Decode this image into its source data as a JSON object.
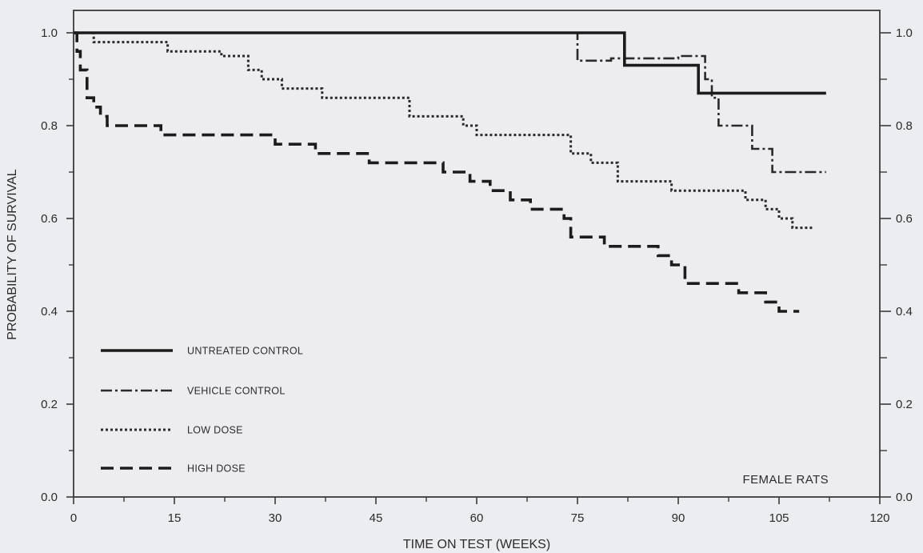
{
  "chart_data": {
    "type": "line",
    "title": "",
    "xlabel": "TIME ON TEST (WEEKS)",
    "ylabel": "PROBABILITY OF SURVIVAL",
    "xlim": [
      0,
      120
    ],
    "ylim": [
      0.0,
      1.0
    ],
    "x_ticks": [
      "0",
      "15",
      "30",
      "45",
      "60",
      "75",
      "90",
      "105",
      "120"
    ],
    "y_ticks_left": [
      "0.0",
      "0.2",
      "0.4",
      "0.6",
      "0.8",
      "1.0"
    ],
    "y_ticks_right": [
      "0.0",
      "0.2",
      "0.4",
      "0.6",
      "0.8",
      "1.0"
    ],
    "grid": false,
    "legend_position": "lower-left",
    "annotation": "FEMALE RATS",
    "series": [
      {
        "name": "UNTREATED CONTROL",
        "style": "solid",
        "color": "#1c1c1c",
        "steps": [
          [
            0,
            1.0
          ],
          [
            82,
            0.93
          ],
          [
            93,
            0.87
          ],
          [
            112,
            0.87
          ]
        ]
      },
      {
        "name": "VEHICLE CONTROL",
        "style": "dashdot",
        "color": "#2a2a2a",
        "steps": [
          [
            0,
            1.0
          ],
          [
            75,
            0.94
          ],
          [
            80,
            0.945
          ],
          [
            90,
            0.95
          ],
          [
            94,
            0.9
          ],
          [
            95,
            0.86
          ],
          [
            96,
            0.8
          ],
          [
            101,
            0.75
          ],
          [
            104,
            0.7
          ],
          [
            112,
            0.7
          ]
        ]
      },
      {
        "name": "LOW DOSE",
        "style": "dotted",
        "color": "#2a2a2a",
        "steps": [
          [
            0,
            1.0
          ],
          [
            3,
            0.98
          ],
          [
            14,
            0.96
          ],
          [
            22,
            0.95
          ],
          [
            26,
            0.92
          ],
          [
            28,
            0.9
          ],
          [
            31,
            0.88
          ],
          [
            37,
            0.86
          ],
          [
            50,
            0.82
          ],
          [
            58,
            0.8
          ],
          [
            60,
            0.78
          ],
          [
            74,
            0.74
          ],
          [
            77,
            0.72
          ],
          [
            81,
            0.68
          ],
          [
            89,
            0.66
          ],
          [
            100,
            0.64
          ],
          [
            103,
            0.62
          ],
          [
            105,
            0.6
          ],
          [
            107,
            0.58
          ],
          [
            110,
            0.58
          ]
        ]
      },
      {
        "name": "HIGH DOSE",
        "style": "dashed",
        "color": "#1c1c1c",
        "steps": [
          [
            0,
            1.0
          ],
          [
            0.5,
            0.96
          ],
          [
            1,
            0.92
          ],
          [
            2,
            0.86
          ],
          [
            3,
            0.84
          ],
          [
            4,
            0.82
          ],
          [
            5,
            0.8
          ],
          [
            13,
            0.78
          ],
          [
            30,
            0.76
          ],
          [
            36,
            0.74
          ],
          [
            44,
            0.72
          ],
          [
            55,
            0.7
          ],
          [
            59,
            0.68
          ],
          [
            62,
            0.66
          ],
          [
            65,
            0.64
          ],
          [
            68,
            0.62
          ],
          [
            73,
            0.6
          ],
          [
            74,
            0.56
          ],
          [
            79,
            0.54
          ],
          [
            87,
            0.52
          ],
          [
            89,
            0.5
          ],
          [
            91,
            0.46
          ],
          [
            99,
            0.44
          ],
          [
            103,
            0.42
          ],
          [
            105,
            0.4
          ],
          [
            108,
            0.4
          ]
        ]
      }
    ]
  }
}
